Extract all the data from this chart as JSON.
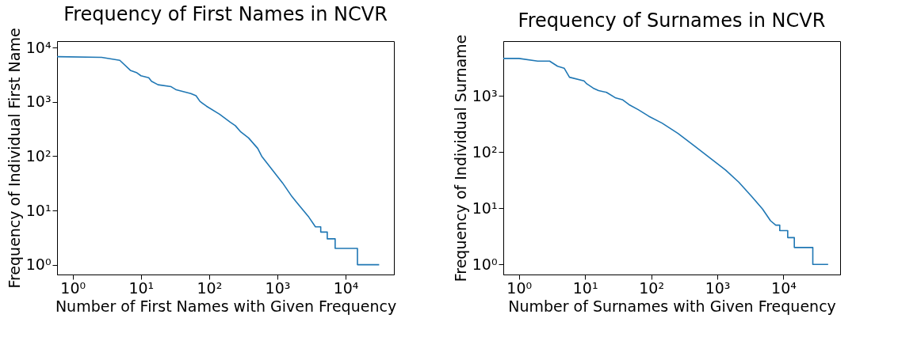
{
  "chart_data": [
    {
      "type": "line",
      "title": "Frequency of First Names in NCVR",
      "xlabel": "Number of First Names with Given Frequency",
      "ylabel": "Frequency of Individual First Name",
      "log": "xy",
      "grid": false,
      "xlim": [
        0.59,
        51000
      ],
      "ylim": [
        0.66,
        13200
      ],
      "xticks": [
        {
          "value": 1,
          "label": "10⁰"
        },
        {
          "value": 10,
          "label": "10¹"
        },
        {
          "value": 100,
          "label": "10²"
        },
        {
          "value": 1000,
          "label": "10³"
        },
        {
          "value": 10000,
          "label": "10⁴"
        }
      ],
      "yticks": [
        {
          "value": 1,
          "label": "10⁰"
        },
        {
          "value": 10,
          "label": "10¹"
        },
        {
          "value": 100,
          "label": "10²"
        },
        {
          "value": 1000,
          "label": "10³"
        },
        {
          "value": 10000,
          "label": "10⁴"
        }
      ],
      "series": [
        {
          "color": "#1f77b4",
          "x": [
            0.59,
            2.65,
            4.9,
            7.0,
            8.75,
            10,
            13.0,
            14.3,
            17.8,
            27.7,
            33.0,
            53.8,
            64.2,
            73.3,
            91.3,
            142,
            203,
            242,
            290,
            378,
            515,
            588,
            838,
            1194,
            1629,
            2124,
            2896,
            3610,
            4315,
            4315,
            5380,
            5380,
            7020,
            7020,
            14900,
            14900,
            31000
          ],
          "values": [
            6820,
            6620,
            5840,
            3820,
            3440,
            3040,
            2800,
            2400,
            2075,
            1910,
            1670,
            1430,
            1300,
            1025,
            835,
            593,
            425,
            365,
            281,
            217,
            139,
            100,
            56.6,
            32,
            18.1,
            12,
            7.5,
            5,
            5,
            4,
            4,
            3,
            3,
            2,
            2,
            1,
            1
          ]
        }
      ]
    },
    {
      "type": "line",
      "title": "Frequency of Surnames in NCVR",
      "xlabel": "Number of Surnames with Given Frequency",
      "ylabel": "Frequency of Individual Surname",
      "log": "xy",
      "grid": false,
      "xlim": [
        0.58,
        72000
      ],
      "ylim": [
        0.66,
        9500
      ],
      "xticks": [
        {
          "value": 1,
          "label": "10⁰"
        },
        {
          "value": 10,
          "label": "10¹"
        },
        {
          "value": 100,
          "label": "10²"
        },
        {
          "value": 1000,
          "label": "10³"
        },
        {
          "value": 10000,
          "label": "10⁴"
        }
      ],
      "yticks": [
        {
          "value": 1,
          "label": "10⁰"
        },
        {
          "value": 10,
          "label": "10¹"
        },
        {
          "value": 100,
          "label": "10²"
        },
        {
          "value": 1000,
          "label": "10³"
        }
      ],
      "series": [
        {
          "color": "#1f77b4",
          "x": [
            0.58,
            1.0,
            1.92,
            2.91,
            3.84,
            4.83,
            5.81,
            9.64,
            10.6,
            13.3,
            16.0,
            21.1,
            29.1,
            36.6,
            46.1,
            63.7,
            92,
            146,
            254,
            441,
            766,
            1330,
            2110,
            3340,
            4830,
            6370,
            7650,
            8790,
            8790,
            11600,
            11600,
            14600,
            14600,
            27800,
            27800,
            47400
          ],
          "values": [
            4670,
            4670,
            4190,
            4190,
            3390,
            3130,
            2160,
            1860,
            1650,
            1380,
            1250,
            1160,
            923,
            861,
            704,
            571,
            436,
            329,
            216,
            131,
            79.4,
            48.2,
            29.2,
            16.0,
            9.7,
            6,
            5,
            5,
            4,
            4,
            3,
            3,
            2,
            2,
            1,
            1
          ]
        }
      ]
    }
  ]
}
